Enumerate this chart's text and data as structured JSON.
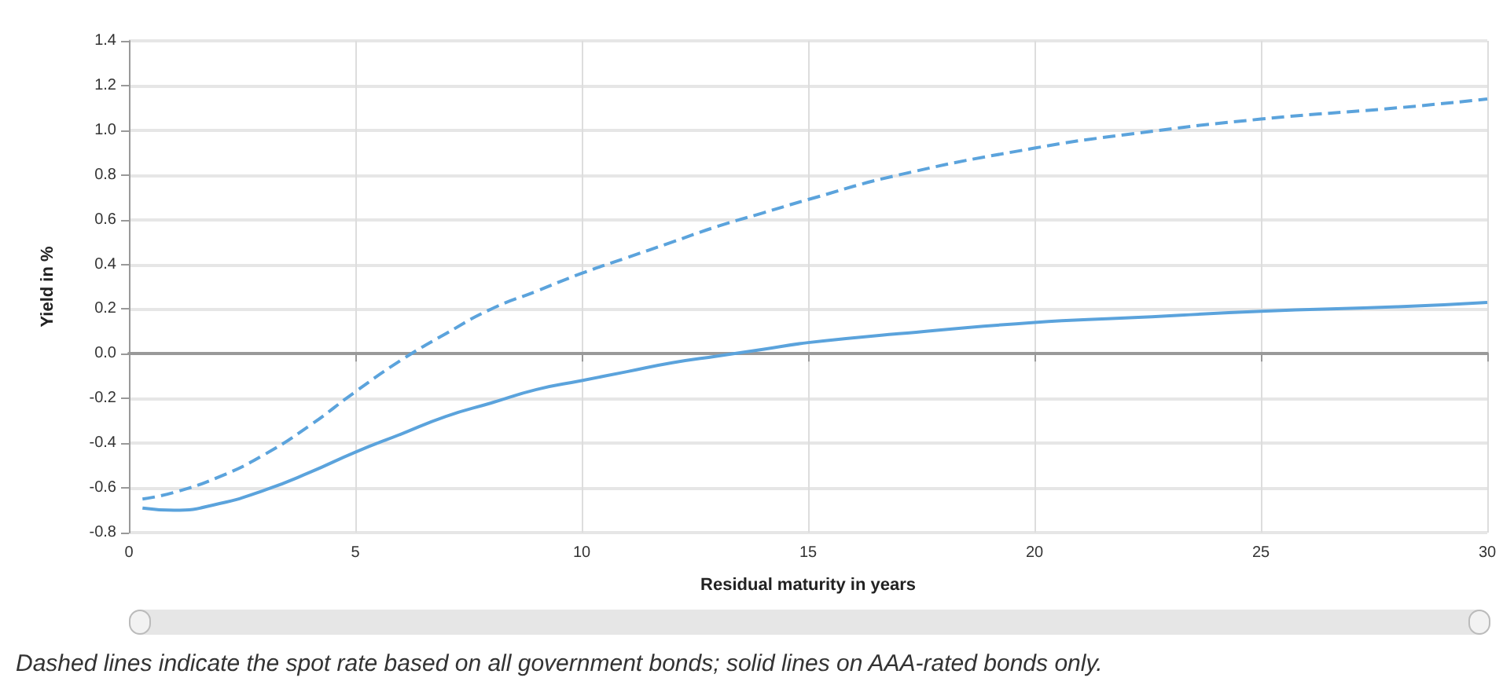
{
  "chart_data": {
    "type": "line",
    "xlabel": "Residual maturity in years",
    "ylabel": "Yield in %",
    "x": [
      0.3,
      1,
      2,
      3,
      4,
      5,
      6,
      7,
      8,
      9,
      10,
      11,
      12,
      13,
      14,
      15,
      17,
      20,
      22,
      25,
      28,
      30
    ],
    "series": [
      {
        "color": "#5ba3dc",
        "line_style": "dashed",
        "values": [
          -0.65,
          -0.62,
          -0.55,
          -0.45,
          -0.32,
          -0.17,
          -0.03,
          0.09,
          0.2,
          0.28,
          0.36,
          0.43,
          0.5,
          0.57,
          0.63,
          0.69,
          0.8,
          0.92,
          0.98,
          1.05,
          1.1,
          1.14
        ]
      },
      {
        "color": "#5ba3dc",
        "line_style": "solid",
        "values": [
          -0.69,
          -0.7,
          -0.67,
          -0.61,
          -0.53,
          -0.44,
          -0.36,
          -0.28,
          -0.22,
          -0.16,
          -0.12,
          -0.08,
          -0.04,
          -0.01,
          0.02,
          0.05,
          0.09,
          0.14,
          0.16,
          0.19,
          0.21,
          0.23
        ]
      }
    ],
    "xlim": [
      0,
      30
    ],
    "xticks": [
      0,
      5,
      10,
      15,
      20,
      25,
      30
    ],
    "ylim": [
      -0.8,
      1.4
    ],
    "yticks": [
      {
        "value": -0.8,
        "label": "-0.8"
      },
      {
        "value": -0.6,
        "label": "-0.6"
      },
      {
        "value": -0.4,
        "label": "-0.4"
      },
      {
        "value": -0.2,
        "label": "-0.2"
      },
      {
        "value": 0,
        "label": "0.0"
      },
      {
        "value": 0.2,
        "label": "0.2"
      },
      {
        "value": 0.4,
        "label": "0.4"
      },
      {
        "value": 0.6,
        "label": "0.6"
      },
      {
        "value": 0.8,
        "label": "0.8"
      },
      {
        "value": 1,
        "label": "1.0"
      },
      {
        "value": 1.2,
        "label": "1.2"
      },
      {
        "value": 1.4,
        "label": "1.4"
      }
    ],
    "grid": true,
    "marker": "none",
    "annotations": [
      "Dashed lines indicate the spot rate based on all government bonds; solid lines on AAA-rated bonds only."
    ]
  }
}
